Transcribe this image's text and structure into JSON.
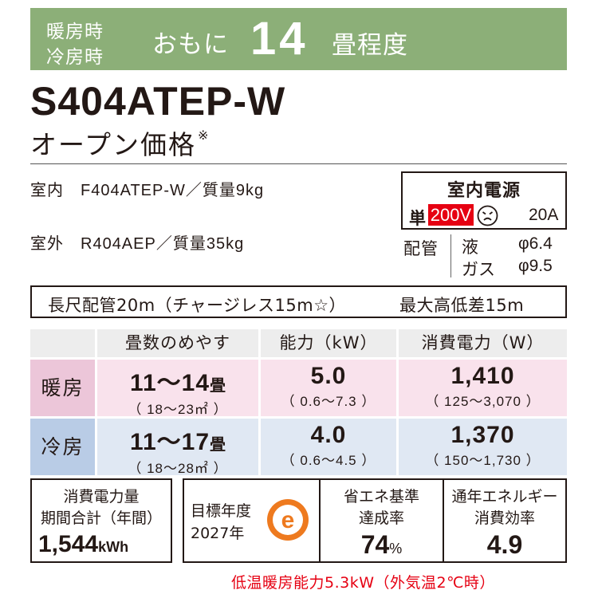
{
  "header": {
    "heating_label": "暖房時",
    "cooling_label": "冷房時",
    "mainly": "おもに",
    "tatami_count": "14",
    "tatami_unit": "畳程度"
  },
  "model": "S404ATEP-W",
  "price": "オープン価格",
  "price_note_mark": "※",
  "specs": {
    "indoor": "室内　F404ATEP-W／質量9kg",
    "outdoor": "室外　R404AEP／質量35kg"
  },
  "power": {
    "title": "室内電源",
    "phase": "単",
    "voltage": "200V",
    "plug_icon": "plug-outlet-icon",
    "ampere": "20A"
  },
  "piping": {
    "label": "配管",
    "liquid_label": "液",
    "liquid_value": "φ6.4",
    "gas_label": "ガス",
    "gas_value": "φ9.5"
  },
  "pipe_length": {
    "max_length": "長尺配管20m（チャージレス15m☆）",
    "max_height": "最大高低差15m"
  },
  "table": {
    "headers": [
      "畳数のめやす",
      "能力（kW）",
      "消費電力（W）"
    ],
    "rows": [
      {
        "label": "暖房",
        "tatami_main": "11～14",
        "tatami_unit": "畳",
        "tatami_sub": "（ 18～23㎡ ）",
        "capacity_main": "5.0",
        "capacity_sub": "（ 0.6～7.3 ）",
        "power_main": "1,410",
        "power_sub": "（ 125～3,070 ）"
      },
      {
        "label": "冷房",
        "tatami_main": "11～17",
        "tatami_unit": "畳",
        "tatami_sub": "（ 18～28㎡ ）",
        "capacity_main": "4.0",
        "capacity_sub": "（ 0.6～4.5 ）",
        "power_main": "1,370",
        "power_sub": "（ 150～1,730 ）"
      }
    ]
  },
  "annual": {
    "line1": "消費電力量",
    "line2": "期間合計（年間）",
    "value": "1,544",
    "unit": "kWh"
  },
  "goal": {
    "year_line1": "目標年度",
    "year_line2": "2027年",
    "mark_icon": "energy-saving-e-mark-icon",
    "mark_letter": "e",
    "achieve_line1": "省エネ基準",
    "achieve_line2": "達成率",
    "achieve_value": "74",
    "achieve_unit": "%",
    "apf_line1": "通年エネルギー",
    "apf_line2": "消費効率",
    "apf_value": "4.9"
  },
  "low_temp_note": "低温暖房能力5.3kW（外気温2℃時）",
  "colors": {
    "header_green": "#8caf78",
    "red": "#e60012",
    "heat_label": "#ecc6d9",
    "heat_cell": "#f9e2ec",
    "cool_label": "#b9cce6",
    "cool_cell": "#e0e8f3",
    "table_header": "#ededed",
    "e_mark_orange": "#ee7a1f"
  }
}
